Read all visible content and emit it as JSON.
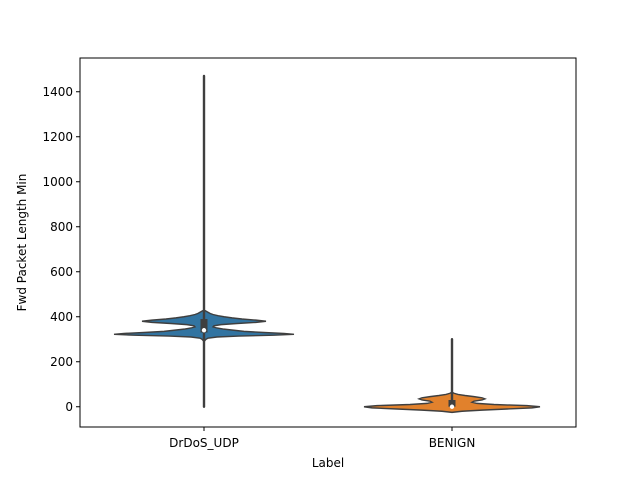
{
  "chart_data": {
    "type": "violin",
    "title": "",
    "xlabel": "Label",
    "ylabel": "Fwd Packet Length Min",
    "ylim": [
      -90,
      1550
    ],
    "yticks": [
      0,
      200,
      400,
      600,
      800,
      1000,
      1200,
      1400
    ],
    "ytick_labels": [
      "0",
      "200",
      "400",
      "600",
      "800",
      "1000",
      "1200",
      "1400"
    ],
    "categories": [
      "DrDoS_UDP",
      "BENIGN"
    ],
    "grid": false,
    "legend": "none",
    "series": [
      {
        "category": "DrDoS_UDP",
        "color": "#3274a1",
        "min": 0,
        "max": 1470,
        "q1": 330,
        "median": 340,
        "q3": 390,
        "density": [
          [
            290,
            0.0
          ],
          [
            300,
            0.02
          ],
          [
            305,
            0.04
          ],
          [
            310,
            0.13
          ],
          [
            314,
            0.35
          ],
          [
            318,
            0.7
          ],
          [
            322,
            0.9
          ],
          [
            326,
            0.8
          ],
          [
            330,
            0.6
          ],
          [
            335,
            0.4
          ],
          [
            340,
            0.3
          ],
          [
            345,
            0.2
          ],
          [
            350,
            0.13
          ],
          [
            355,
            0.09
          ],
          [
            360,
            0.1
          ],
          [
            365,
            0.17
          ],
          [
            370,
            0.33
          ],
          [
            375,
            0.52
          ],
          [
            380,
            0.62
          ],
          [
            385,
            0.52
          ],
          [
            390,
            0.38
          ],
          [
            395,
            0.28
          ],
          [
            400,
            0.2
          ],
          [
            405,
            0.14
          ],
          [
            410,
            0.09
          ],
          [
            415,
            0.06
          ],
          [
            420,
            0.04
          ],
          [
            425,
            0.02
          ],
          [
            430,
            0.0
          ]
        ]
      },
      {
        "category": "BENIGN",
        "color": "#e1812c",
        "min": 0,
        "max": 300,
        "q1": 0,
        "median": 0,
        "q3": 30,
        "density": [
          [
            -25,
            0.0
          ],
          [
            -20,
            0.1
          ],
          [
            -15,
            0.3
          ],
          [
            -10,
            0.55
          ],
          [
            -5,
            0.8
          ],
          [
            0,
            0.88
          ],
          [
            5,
            0.75
          ],
          [
            10,
            0.42
          ],
          [
            15,
            0.25
          ],
          [
            20,
            0.2
          ],
          [
            25,
            0.22
          ],
          [
            30,
            0.3
          ],
          [
            35,
            0.33
          ],
          [
            40,
            0.3
          ],
          [
            45,
            0.22
          ],
          [
            50,
            0.13
          ],
          [
            55,
            0.06
          ],
          [
            60,
            0.02
          ],
          [
            65,
            0.0
          ]
        ]
      }
    ]
  }
}
